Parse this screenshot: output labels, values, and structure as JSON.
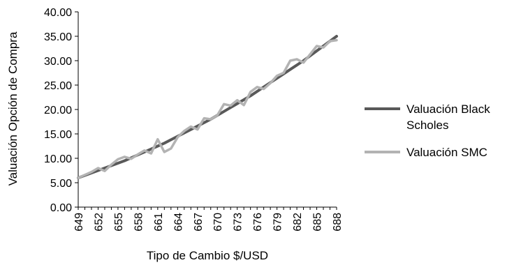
{
  "chart_data": {
    "type": "line",
    "title": "",
    "xlabel": "Tipo de Cambio $/USD",
    "ylabel": "Valuación Opción de Compra",
    "ylim": [
      0,
      40
    ],
    "xlim": [
      649,
      688
    ],
    "y_ticks": [
      "0.00",
      "5.00",
      "10.00",
      "15.00",
      "20.00",
      "25.00",
      "30.00",
      "35.00",
      "40.00"
    ],
    "x_ticks": [
      "649",
      "652",
      "655",
      "658",
      "661",
      "664",
      "667",
      "670",
      "673",
      "676",
      "679",
      "682",
      "685",
      "688"
    ],
    "x": [
      649,
      650,
      651,
      652,
      653,
      654,
      655,
      656,
      657,
      658,
      659,
      660,
      661,
      662,
      663,
      664,
      665,
      666,
      667,
      668,
      669,
      670,
      671,
      672,
      673,
      674,
      675,
      676,
      677,
      678,
      679,
      680,
      681,
      682,
      683,
      684,
      685,
      686,
      687,
      688
    ],
    "legend_position": "right",
    "grid": false,
    "series": [
      {
        "name": "Valuación Black Scholes",
        "color": "#595959",
        "values": [
          6.0,
          6.5,
          7.0,
          7.5,
          8.0,
          8.5,
          9.0,
          9.5,
          10.1,
          10.7,
          11.3,
          11.9,
          12.5,
          13.1,
          13.8,
          14.5,
          15.2,
          15.9,
          16.6,
          17.3,
          18.0,
          18.8,
          19.6,
          20.4,
          21.2,
          22.0,
          22.8,
          23.7,
          24.6,
          25.5,
          26.4,
          27.3,
          28.2,
          29.1,
          30.0,
          31.0,
          32.0,
          33.0,
          34.0,
          35.0
        ]
      },
      {
        "name": "Valuación SMC",
        "color": "#b3b3b3",
        "values": [
          6.0,
          6.6,
          7.2,
          8.0,
          7.4,
          8.7,
          9.8,
          10.3,
          9.9,
          10.8,
          11.6,
          11.0,
          13.9,
          11.3,
          12.0,
          14.3,
          15.6,
          16.5,
          15.9,
          18.2,
          18.0,
          18.8,
          21.1,
          20.8,
          21.9,
          20.9,
          23.6,
          24.6,
          24.2,
          25.4,
          26.9,
          27.5,
          30.0,
          30.3,
          29.6,
          31.3,
          33.0,
          32.7,
          34.0,
          34.2
        ]
      }
    ]
  }
}
